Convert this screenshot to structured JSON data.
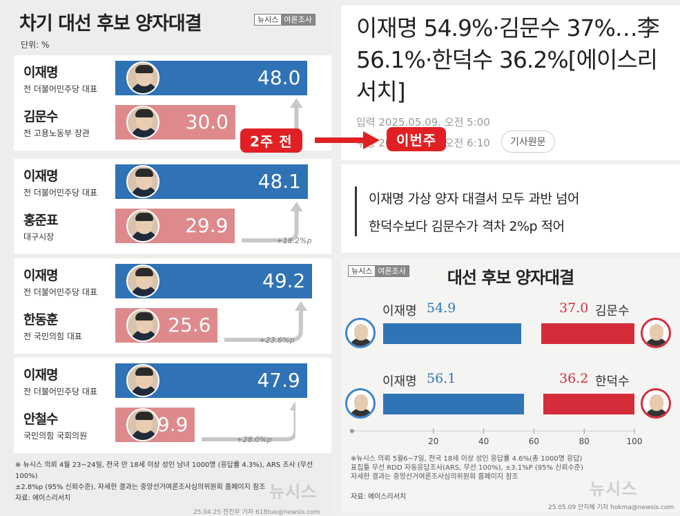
{
  "left": {
    "title": "차기 대선 후보 양자대결",
    "badge": [
      "뉴시스",
      "여론조사"
    ],
    "unit": "단위: %",
    "note_line1": "※ 뉴시스 의뢰 4월 23~24일, 전국 만 18세 이상 성인 남녀 1000명 (응답률 4.3%), ARS 조사 (무선 100%)",
    "note_line2": "±2.8%p (95% 신뢰수준), 자세한 결과는 중앙선거여론조사심의위원회 홈페이지 참조",
    "source": "자료: 에이스리서치",
    "credit": "25.04.25 전진우 기자 618tue@newsis.com"
  },
  "labels": {
    "before": "2주 전",
    "now": "이번주"
  },
  "article": {
    "title": "이재명 54.9%·김문수 37%…李 56.1%·한덕수 36.2%[에이스리서치]",
    "date1": "입력 2025.05.09. 오전 5:00",
    "date2": "수정 2025.05.09. 오전 6:10",
    "origin_button": "기사원문",
    "sub1": "이재명 가상 양자 대결서 모두 과반 넘어",
    "sub2": "한덕수보다 김문수가 격차 2%p 적어"
  },
  "right": {
    "title": "대선 후보 양자대결",
    "badge": [
      "뉴시스",
      "여론조사"
    ],
    "note_line1": "※뉴시스 의뢰 5월6~7일, 전국 18세 이상 성인 응답률 4.6%(총 1000명 응답)",
    "note_line2": "표집틀 무선 RDD 자동응답조사(ARS, 무선 100%), ±3.1%P (95% 신뢰수준)",
    "note_line3": "자세한 결과는 중앙선거여론조사심의위원회 홈페이지 참조",
    "source": "자료: 에이스리서치",
    "credit": "25.05.09 안지혜 기자 hokma@newsis.com"
  },
  "watermark": "뉴시스",
  "colors": {
    "blue": "#2f72b5",
    "pink": "#de8a8d",
    "red": "#d52c3a",
    "accent": "#e02024"
  },
  "chart_data": [
    {
      "type": "bar",
      "title": "차기 대선 후보 양자대결",
      "unit": "%",
      "matchups": [
        {
          "a_name": "이재명",
          "a_role": "전 더불어민주당 대표",
          "a_value": 48.0,
          "b_name": "김문수",
          "b_role": "전 고용노동부 장관",
          "b_value": 30.0,
          "diff": ""
        },
        {
          "a_name": "이재명",
          "a_role": "전 더불어민주당 대표",
          "a_value": 48.1,
          "b_name": "홍준표",
          "b_role": "대구시장",
          "b_value": 29.9,
          "diff": "+18.2%p"
        },
        {
          "a_name": "이재명",
          "a_role": "전 더불어민주당 대표",
          "a_value": 49.2,
          "b_name": "한동훈",
          "b_role": "전 국민의힘 대표",
          "b_value": 25.6,
          "diff": "+23.6%p"
        },
        {
          "a_name": "이재명",
          "a_role": "전 더불어민주당 대표",
          "a_value": 47.9,
          "b_name": "안철수",
          "b_role": "국민의힘 국회의원",
          "b_value": 19.9,
          "diff": "+28.0%p"
        }
      ]
    },
    {
      "type": "bar",
      "title": "대선 후보 양자대결",
      "xlim": [
        0,
        100
      ],
      "ticks": [
        20,
        40,
        60,
        80,
        100
      ],
      "matchups": [
        {
          "a_name": "이재명",
          "a_value": 54.9,
          "b_name": "김문수",
          "b_value": 37.0
        },
        {
          "a_name": "이재명",
          "a_value": 56.1,
          "b_name": "한덕수",
          "b_value": 36.2
        }
      ]
    }
  ]
}
